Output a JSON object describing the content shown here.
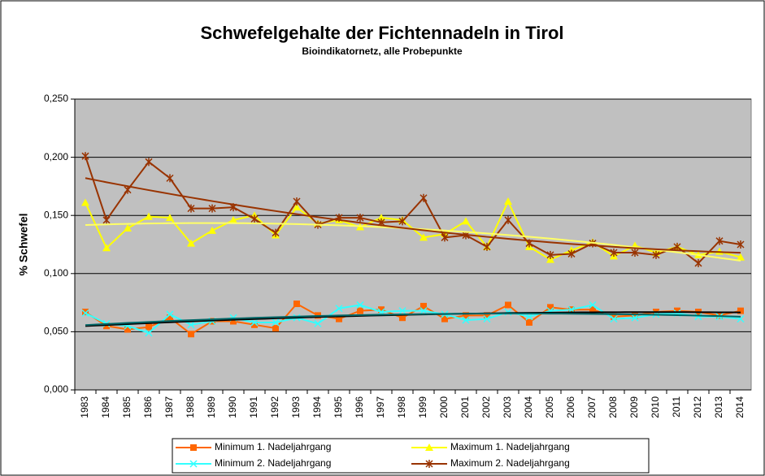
{
  "chart_data": {
    "type": "line",
    "title": "Schwefelgehalte der Fichtennadeln in Tirol",
    "subtitle": "Bioindikatornetz, alle Probepunkte",
    "y_label": "% Schwefel",
    "categories": [
      "1983",
      "1984",
      "1985",
      "1986",
      "1987",
      "1988",
      "1989",
      "1990",
      "1991",
      "1992",
      "1993",
      "1994",
      "1995",
      "1996",
      "1997",
      "1998",
      "1999",
      "2000",
      "2001",
      "2002",
      "2003",
      "2004",
      "2005",
      "2006",
      "2007",
      "2008",
      "2009",
      "2010",
      "2011",
      "2012",
      "2013",
      "2014"
    ],
    "ylim": [
      0,
      0.25
    ],
    "yticks": [
      {
        "value": 0,
        "label": "0,000"
      },
      {
        "value": 0.05,
        "label": "0,050"
      },
      {
        "value": 0.1,
        "label": "0,100"
      },
      {
        "value": 0.15,
        "label": "0,150"
      },
      {
        "value": 0.2,
        "label": "0,200"
      },
      {
        "value": 0.25,
        "label": "0,250"
      }
    ],
    "grid": true,
    "plot_background": "#c0c0c0",
    "legend": "bottom",
    "trendline": "polynomial",
    "series": [
      {
        "name": "Minimum 1. Nadeljahrgang",
        "color": "#ff6600",
        "marker": "square",
        "trend_color": "#000000",
        "values": [
          0.067,
          0.055,
          0.052,
          0.054,
          0.062,
          0.048,
          0.059,
          0.059,
          0.056,
          0.053,
          0.074,
          0.064,
          0.061,
          0.068,
          0.069,
          0.062,
          0.072,
          0.061,
          0.064,
          0.064,
          0.073,
          0.058,
          0.071,
          0.069,
          0.069,
          0.063,
          0.064,
          0.067,
          0.068,
          0.067,
          0.064,
          0.068
        ]
      },
      {
        "name": "Maximum 1. Nadeljahrgang",
        "color": "#ffff00",
        "marker": "triangle",
        "trend_color": "#ffff66",
        "values": [
          0.161,
          0.122,
          0.139,
          0.149,
          0.148,
          0.126,
          0.137,
          0.146,
          0.15,
          0.133,
          0.157,
          0.143,
          0.146,
          0.14,
          0.148,
          0.146,
          0.131,
          0.134,
          0.145,
          0.123,
          0.162,
          0.123,
          0.112,
          0.12,
          0.127,
          0.115,
          0.124,
          0.118,
          0.123,
          0.116,
          0.119,
          0.114
        ]
      },
      {
        "name": "Minimum 2. Nadeljahrgang",
        "color": "#33ffff",
        "marker": "x",
        "trend_color": "#006666",
        "values": [
          0.066,
          0.057,
          0.055,
          0.049,
          0.065,
          0.056,
          0.059,
          0.062,
          0.058,
          0.058,
          0.062,
          0.057,
          0.07,
          0.073,
          0.067,
          0.068,
          0.068,
          0.065,
          0.06,
          0.061,
          0.067,
          0.063,
          0.068,
          0.069,
          0.073,
          0.061,
          0.062,
          0.065,
          0.066,
          0.063,
          0.063,
          0.061
        ]
      },
      {
        "name": "Maximum 2. Nadeljahrgang",
        "color": "#993300",
        "marker": "asterisk",
        "trend_color": "#993300",
        "values": [
          0.201,
          0.146,
          0.172,
          0.196,
          0.182,
          0.156,
          0.156,
          0.157,
          0.147,
          0.135,
          0.162,
          0.142,
          0.148,
          0.148,
          0.144,
          0.145,
          0.165,
          0.131,
          0.133,
          0.123,
          0.146,
          0.126,
          0.116,
          0.117,
          0.126,
          0.118,
          0.118,
          0.116,
          0.123,
          0.109,
          0.128,
          0.125
        ]
      }
    ]
  }
}
